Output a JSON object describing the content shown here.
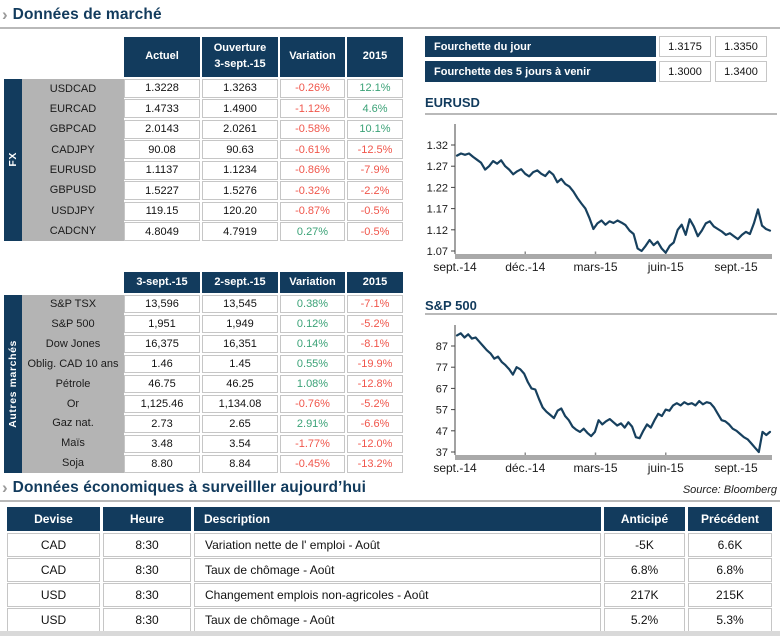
{
  "page": {
    "section1_title": "Données de marché",
    "section2_title": "Données économiques à surveilller aujourd’hui",
    "source_note": "Source: Bloomberg"
  },
  "icons": {
    "chevron": "›"
  },
  "colors": {
    "navy": "#123b5d",
    "positive_green": "#3ba277",
    "negative_red": "#f0564b",
    "label_gray": "#b4b4b4",
    "chart_line": "#17405e",
    "chart_baseline": "#a9a9a9"
  },
  "fx_table": {
    "sidebar_label": "FX",
    "h1": "Actuel",
    "h2a": "Ouverture",
    "h2b": "3-sept.-15",
    "h3": "Variation",
    "h4": "2015",
    "rows": [
      {
        "label": "USDCAD",
        "actuel": "1.3228",
        "ouverture": "1.3263",
        "variation": "-0.26%",
        "ytd": "12.1%"
      },
      {
        "label": "EURCAD",
        "actuel": "1.4733",
        "ouverture": "1.4900",
        "variation": "-1.12%",
        "ytd": "4.6%"
      },
      {
        "label": "GBPCAD",
        "actuel": "2.0143",
        "ouverture": "2.0261",
        "variation": "-0.58%",
        "ytd": "10.1%"
      },
      {
        "label": "CADJPY",
        "actuel": "90.08",
        "ouverture": "90.63",
        "variation": "-0.61%",
        "ytd": "-12.5%"
      },
      {
        "label": "EURUSD",
        "actuel": "1.1137",
        "ouverture": "1.1234",
        "variation": "-0.86%",
        "ytd": "-7.9%"
      },
      {
        "label": "GBPUSD",
        "actuel": "1.5227",
        "ouverture": "1.5276",
        "variation": "-0.32%",
        "ytd": "-2.2%"
      },
      {
        "label": "USDJPY",
        "actuel": "119.15",
        "ouverture": "120.20",
        "variation": "-0.87%",
        "ytd": "-0.5%"
      },
      {
        "label": "CADCNY",
        "actuel": "4.8049",
        "ouverture": "4.7919",
        "variation": "0.27%",
        "ytd": "-0.5%"
      }
    ]
  },
  "fourchette": {
    "rows": [
      {
        "label": "Fourchette du jour",
        "low": "1.3175",
        "high": "1.3350"
      },
      {
        "label": "Fourchette des 5 jours à venir",
        "low": "1.3000",
        "high": "1.3400"
      }
    ]
  },
  "markets_table": {
    "sidebar_label": "Autres marchés",
    "h1": "3-sept.-15",
    "h2": "2-sept.-15",
    "h3": "Variation",
    "h4": "2015",
    "rows": [
      {
        "label": "S&P TSX",
        "d1": "13,596",
        "d2": "13,545",
        "variation": "0.38%",
        "ytd": "-7.1%"
      },
      {
        "label": "S&P 500",
        "d1": "1,951",
        "d2": "1,949",
        "variation": "0.12%",
        "ytd": "-5.2%"
      },
      {
        "label": "Dow Jones",
        "d1": "16,375",
        "d2": "16,351",
        "variation": "0.14%",
        "ytd": "-8.1%"
      },
      {
        "label": "Oblig. CAD 10 ans",
        "d1": "1.46",
        "d2": "1.45",
        "variation": "0.55%",
        "ytd": "-19.9%"
      },
      {
        "label": "Pétrole",
        "d1": "46.75",
        "d2": "46.25",
        "variation": "1.08%",
        "ytd": "-12.8%"
      },
      {
        "label": "Or",
        "d1": "1,125.46",
        "d2": "1,134.08",
        "variation": "-0.76%",
        "ytd": "-5.2%"
      },
      {
        "label": "Gaz nat.",
        "d1": "2.73",
        "d2": "2.65",
        "variation": "2.91%",
        "ytd": "-6.6%"
      },
      {
        "label": "Maïs",
        "d1": "3.48",
        "d2": "3.54",
        "variation": "-1.77%",
        "ytd": "-12.0%"
      },
      {
        "label": "Soja",
        "d1": "8.80",
        "d2": "8.84",
        "variation": "-0.45%",
        "ytd": "-13.2%"
      }
    ]
  },
  "econ_table": {
    "h1": "Devise",
    "h2": "Heure",
    "h3": "Description",
    "h4": "Anticipé",
    "h5": "Précédent",
    "rows": [
      {
        "devise": "CAD",
        "heure": "8:30",
        "description": "Variation nette de l' emploi - Août",
        "anticipe": "-5K",
        "precedent": "6.6K"
      },
      {
        "devise": "CAD",
        "heure": "8:30",
        "description": "Taux de chômage - Août",
        "anticipe": "6.8%",
        "precedent": "6.8%"
      },
      {
        "devise": "USD",
        "heure": "8:30",
        "description": "Changement emplois non-agricoles - Août",
        "anticipe": "217K",
        "precedent": "215K"
      },
      {
        "devise": "USD",
        "heure": "8:30",
        "description": "Taux de chômage - Août",
        "anticipe": "5.2%",
        "precedent": "5.3%"
      }
    ]
  },
  "chart_data": [
    {
      "type": "line",
      "title": "EURUSD",
      "ytick_labels": [
        "1.32",
        "1.27",
        "1.22",
        "1.17",
        "1.12",
        "1.07"
      ],
      "xtick_labels": [
        "sept.-14",
        "déc.-14",
        "mars-15",
        "juin-15",
        "sept.-15"
      ],
      "ylim": [
        1.05,
        1.37
      ],
      "xlabel": "",
      "ylabel": "",
      "grid": false,
      "legend": false,
      "line_color": "#17405e",
      "values": [
        1.295,
        1.3,
        1.297,
        1.3,
        1.292,
        1.285,
        1.278,
        1.262,
        1.27,
        1.282,
        1.276,
        1.284,
        1.27,
        1.262,
        1.251,
        1.258,
        1.263,
        1.252,
        1.246,
        1.256,
        1.26,
        1.252,
        1.247,
        1.258,
        1.25,
        1.232,
        1.24,
        1.228,
        1.222,
        1.21,
        1.195,
        1.182,
        1.17,
        1.148,
        1.122,
        1.135,
        1.142,
        1.132,
        1.14,
        1.136,
        1.142,
        1.137,
        1.131,
        1.118,
        1.11,
        1.076,
        1.07,
        1.082,
        1.096,
        1.084,
        1.092,
        1.076,
        1.066,
        1.082,
        1.09,
        1.12,
        1.132,
        1.108,
        1.145,
        1.128,
        1.105,
        1.118,
        1.135,
        1.14,
        1.128,
        1.122,
        1.116,
        1.108,
        1.112,
        1.105,
        1.098,
        1.108,
        1.115,
        1.11,
        1.135,
        1.168,
        1.13,
        1.122,
        1.118
      ]
    },
    {
      "type": "line",
      "title": "S&P 500",
      "ytick_labels": [
        "87",
        "77",
        "67",
        "57",
        "47",
        "37"
      ],
      "xtick_labels": [
        "sept.-14",
        "déc.-14",
        "mars-15",
        "juin-15",
        "sept.-15"
      ],
      "ylim": [
        36,
        95
      ],
      "xlabel": "",
      "ylabel": "",
      "grid": false,
      "legend": false,
      "line_color": "#17405e",
      "values": [
        92,
        93,
        91,
        92.5,
        90.5,
        91,
        89,
        87,
        85,
        83.5,
        81,
        82,
        79.5,
        78,
        76,
        73.5,
        77,
        76,
        74,
        70,
        67,
        66.5,
        62,
        58,
        56,
        54.5,
        53,
        56.5,
        57.5,
        54,
        52,
        49,
        47.5,
        46.5,
        48,
        46,
        44.5,
        46.5,
        52,
        50,
        51.5,
        52.5,
        51,
        49.5,
        50.5,
        48.5,
        51,
        49,
        44,
        43.5,
        47,
        50,
        48.5,
        52,
        55,
        54,
        57,
        56.5,
        59,
        60,
        59,
        60.5,
        59.5,
        60,
        59,
        61,
        59.5,
        60.5,
        60,
        58,
        55,
        52,
        51.5,
        50,
        48,
        47,
        45.5,
        44,
        43,
        41,
        39,
        37,
        46.5,
        45,
        46.5
      ]
    }
  ]
}
